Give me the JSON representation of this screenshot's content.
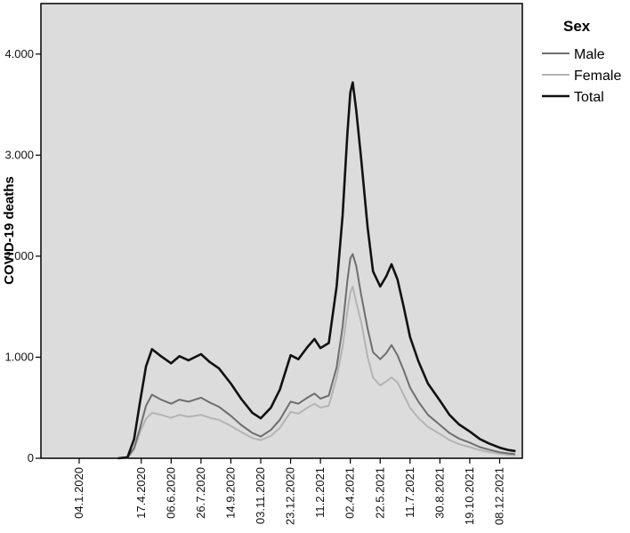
{
  "chart_data": {
    "type": "line",
    "title": "",
    "xlabel": "",
    "ylabel": "COVID-19 deaths",
    "legend": {
      "title": "Sex",
      "placement": "top-right, outside plot"
    },
    "ylim": [
      0,
      4500
    ],
    "xlim": [
      "2019-11-01",
      "2022-01-15"
    ],
    "y_ticks": [
      {
        "value": 0,
        "label": "0"
      },
      {
        "value": 1000,
        "label": "1.000"
      },
      {
        "value": 2000,
        "label": "2.000"
      },
      {
        "value": 3000,
        "label": "3.000"
      },
      {
        "value": 4000,
        "label": "4.000"
      }
    ],
    "x_ticks": [
      {
        "date": "2020-01-04",
        "label": "04.1.2020"
      },
      {
        "date": "2020-04-17",
        "label": "17.4.2020"
      },
      {
        "date": "2020-06-06",
        "label": "06.6.2020"
      },
      {
        "date": "2020-07-26",
        "label": "26.7.2020"
      },
      {
        "date": "2020-09-14",
        "label": "14.9.2020"
      },
      {
        "date": "2020-11-03",
        "label": "03.11.2020"
      },
      {
        "date": "2020-12-23",
        "label": "23.12.2020"
      },
      {
        "date": "2021-02-11",
        "label": "11.2.2021"
      },
      {
        "date": "2021-04-02",
        "label": "02.4.2021"
      },
      {
        "date": "2021-05-22",
        "label": "22.5.2021"
      },
      {
        "date": "2021-07-11",
        "label": "11.7.2021"
      },
      {
        "date": "2021-08-30",
        "label": "30.8.2021"
      },
      {
        "date": "2021-10-19",
        "label": "19.10.2021"
      },
      {
        "date": "2021-12-08",
        "label": "08.12.2021"
      }
    ],
    "grid": false,
    "colors": {
      "plot_background": "#dcdcdc",
      "Male": "#6e6e6e",
      "Female": "#b4b4b4",
      "Total": "#111111"
    },
    "x": [
      "2020-03-10",
      "2020-03-25",
      "2020-04-05",
      "2020-04-15",
      "2020-04-25",
      "2020-05-05",
      "2020-05-20",
      "2020-06-06",
      "2020-06-20",
      "2020-07-05",
      "2020-07-26",
      "2020-08-10",
      "2020-08-25",
      "2020-09-14",
      "2020-10-01",
      "2020-10-20",
      "2020-11-03",
      "2020-11-20",
      "2020-12-05",
      "2020-12-23",
      "2021-01-05",
      "2021-01-20",
      "2021-02-01",
      "2021-02-11",
      "2021-02-25",
      "2021-03-10",
      "2021-03-20",
      "2021-03-28",
      "2021-04-02",
      "2021-04-06",
      "2021-04-12",
      "2021-04-20",
      "2021-05-01",
      "2021-05-10",
      "2021-05-22",
      "2021-06-01",
      "2021-06-10",
      "2021-06-20",
      "2021-07-01",
      "2021-07-11",
      "2021-07-25",
      "2021-08-10",
      "2021-08-30",
      "2021-09-15",
      "2021-10-01",
      "2021-10-19",
      "2021-11-05",
      "2021-11-20",
      "2021-12-08",
      "2021-12-22",
      "2022-01-02"
    ],
    "series": [
      {
        "name": "Male",
        "values": [
          0,
          5,
          100,
          300,
          520,
          630,
          580,
          540,
          580,
          560,
          600,
          550,
          510,
          420,
          330,
          250,
          215,
          280,
          380,
          560,
          540,
          600,
          640,
          590,
          620,
          900,
          1300,
          1750,
          1980,
          2020,
          1900,
          1620,
          1280,
          1050,
          980,
          1040,
          1120,
          1020,
          860,
          700,
          560,
          430,
          330,
          250,
          195,
          155,
          110,
          85,
          60,
          48,
          42
        ]
      },
      {
        "name": "Female",
        "values": [
          0,
          5,
          90,
          260,
          390,
          450,
          430,
          400,
          430,
          410,
          430,
          400,
          380,
          320,
          260,
          200,
          180,
          220,
          300,
          460,
          440,
          500,
          540,
          500,
          520,
          800,
          1100,
          1450,
          1640,
          1700,
          1540,
          1350,
          1000,
          800,
          720,
          760,
          800,
          750,
          620,
          500,
          400,
          310,
          240,
          180,
          140,
          110,
          80,
          62,
          45,
          35,
          30
        ]
      },
      {
        "name": "Total",
        "values": [
          0,
          10,
          190,
          560,
          910,
          1080,
          1010,
          940,
          1010,
          970,
          1030,
          950,
          890,
          740,
          590,
          450,
          395,
          500,
          680,
          1020,
          980,
          1100,
          1180,
          1090,
          1140,
          1700,
          2400,
          3200,
          3620,
          3720,
          3440,
          2970,
          2280,
          1850,
          1700,
          1800,
          1920,
          1770,
          1480,
          1200,
          960,
          740,
          570,
          430,
          335,
          265,
          190,
          147,
          105,
          83,
          72
        ]
      }
    ]
  }
}
